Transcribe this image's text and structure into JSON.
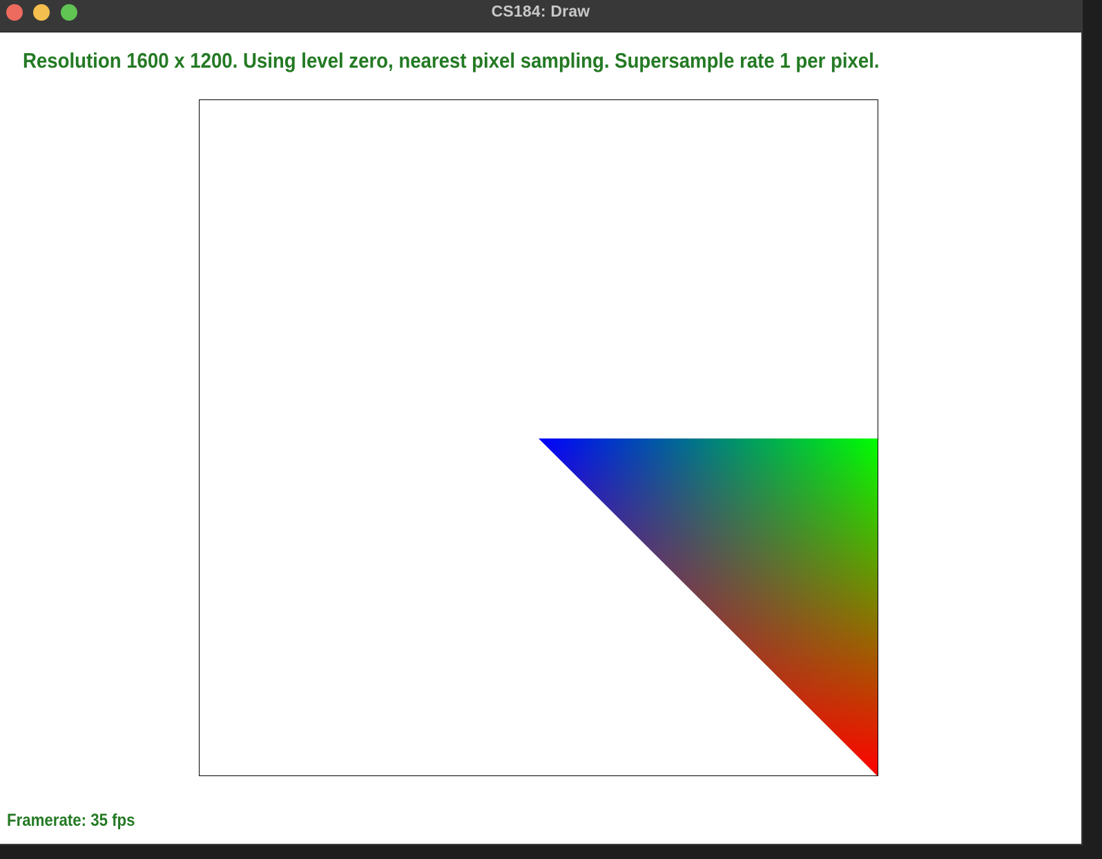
{
  "window": {
    "title": "CS184: Draw",
    "controls": [
      "close-icon",
      "minimize-icon",
      "zoom-icon"
    ]
  },
  "status": {
    "text": "Resolution 1600 x 1200. Using level zero, nearest pixel sampling. Supersample rate 1 per pixel.",
    "color": "#247a24"
  },
  "canvas": {
    "background": "#ffffff",
    "border_color": "#000000",
    "triangle": {
      "vertex_colors": {
        "top_left": "#0000ff",
        "top_right": "#00ff00",
        "bottom_right": "#ff0000"
      }
    }
  },
  "footer": {
    "framerate": "Framerate: 35 fps"
  }
}
